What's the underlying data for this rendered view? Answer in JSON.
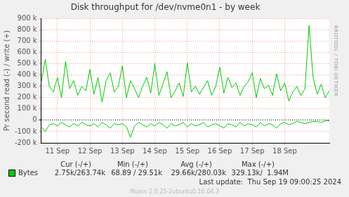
{
  "chart_data": {
    "type": "line",
    "title": "Disk throughput for /dev/nvme0n1 - by week",
    "y_label": "Pr second read (-) / write (+)",
    "categories": [
      null,
      null,
      null,
      null,
      "11 Sep",
      null,
      null,
      null,
      null,
      null,
      null,
      null,
      "12 Sep",
      null,
      null,
      null,
      null,
      null,
      null,
      null,
      "13 Sep",
      null,
      null,
      null,
      null,
      null,
      null,
      null,
      "14 Sep",
      null,
      null,
      null,
      null,
      null,
      null,
      null,
      "15 Sep",
      null,
      null,
      null,
      null,
      null,
      null,
      null,
      "16 Sep",
      null,
      null,
      null,
      null,
      null,
      null,
      null,
      "17 Sep",
      null,
      null,
      null,
      null,
      null,
      null,
      null,
      "18 Sep",
      null,
      null,
      null,
      null,
      null,
      null,
      null,
      null,
      null,
      null,
      null
    ],
    "series": [
      {
        "name": "Bytes",
        "color": "#00cc00",
        "values": [
          330000,
          540000,
          300000,
          250000,
          380000,
          200000,
          520000,
          280000,
          350000,
          220000,
          300000,
          260000,
          450000,
          230000,
          380000,
          160000,
          350000,
          420000,
          250000,
          300000,
          480000,
          200000,
          350000,
          280000,
          200000,
          300000,
          380000,
          240000,
          500000,
          220000,
          320000,
          430000,
          200000,
          260000,
          330000,
          210000,
          510000,
          250000,
          300000,
          230000,
          290000,
          350000,
          220000,
          300000,
          470000,
          240000,
          380000,
          290000,
          330000,
          220000,
          300000,
          340000,
          420000,
          200000,
          370000,
          280000,
          310000,
          220000,
          410000,
          260000,
          330000,
          170000,
          250000,
          300000,
          220000,
          280000,
          840000,
          380000,
          230000,
          320000,
          200000,
          260000
        ],
        "read_values": [
          -60000,
          -100000,
          -40000,
          -30000,
          -50000,
          -20000,
          -40000,
          -60000,
          -30000,
          -50000,
          -20000,
          -40000,
          -50000,
          -30000,
          -60000,
          -20000,
          -40000,
          -70000,
          -30000,
          -40000,
          -30000,
          -60000,
          -150000,
          -50000,
          -20000,
          -40000,
          -60000,
          -30000,
          -50000,
          -20000,
          -40000,
          -70000,
          -30000,
          -50000,
          -40000,
          -20000,
          -60000,
          -30000,
          -50000,
          -40000,
          -20000,
          -60000,
          -40000,
          -30000,
          -50000,
          -70000,
          -30000,
          -40000,
          -60000,
          -20000,
          -50000,
          -30000,
          -40000,
          -60000,
          -20000,
          -50000,
          -30000,
          -40000,
          -70000,
          -30000,
          -20000,
          -40000,
          -30000,
          -10000,
          -20000,
          -30000,
          -20000,
          -10000,
          -10000,
          -20000,
          -5000,
          -3000
        ]
      }
    ],
    "ylim": [
      -200000,
      900000
    ],
    "yticks": [
      {
        "value": -200000,
        "label": "-200 k"
      },
      {
        "value": -100000,
        "label": "-100 k"
      },
      0,
      {
        "value": 100000,
        "label": "100 k"
      },
      {
        "value": 200000,
        "label": "200 k"
      },
      {
        "value": 300000,
        "label": "300 k"
      },
      {
        "value": 400000,
        "label": "400 k"
      },
      {
        "value": 500000,
        "label": "500 k"
      },
      {
        "value": 600000,
        "label": "600 k"
      },
      {
        "value": 700000,
        "label": "700 k"
      },
      {
        "value": 800000,
        "label": "800 k"
      },
      {
        "value": 900000,
        "label": "900 k"
      }
    ],
    "grid": true,
    "stats": {
      "headers": [
        "Cur (-/+)",
        "Min (-/+)",
        "Avg (-/+)",
        "Max (-/+)"
      ],
      "rows": [
        {
          "label": "Bytes",
          "values": [
            "2.75k/263.74k",
            "68.89 / 29.51k",
            "29.66k/280.03k",
            "329.13k/  1.94M"
          ]
        }
      ]
    },
    "last_update": "Last update:  Thu Sep 19 09:00:25 2024",
    "credit": "Munin 2.0.25-2ubuntu0.16.04.3",
    "watermark": "RRDTOOL / TOBI OETIKER"
  }
}
